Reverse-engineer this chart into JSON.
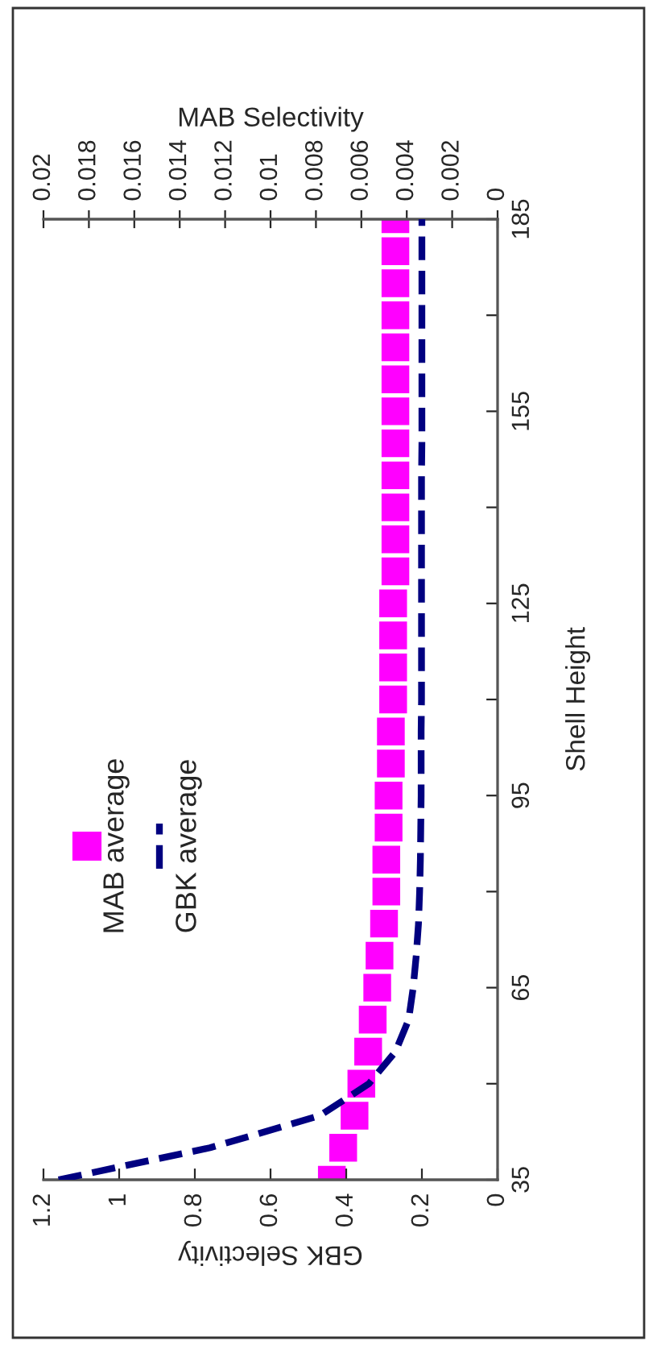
{
  "chart_data": {
    "type": "line",
    "orientation": "horizontal",
    "xlabel": "GBK Selectivity",
    "ylabel": "Shell Height",
    "x2label": "MAB Selectivity",
    "x": [
      35,
      40,
      45,
      50,
      55,
      60,
      65,
      70,
      75,
      80,
      85,
      90,
      95,
      100,
      105,
      110,
      115,
      120,
      125,
      130,
      135,
      140,
      145,
      150,
      155,
      160,
      165,
      170,
      175,
      180,
      185
    ],
    "series": [
      {
        "name": "MAB average",
        "type": "scatter",
        "axis": "x2",
        "color": "#ff00ff",
        "marker": "square",
        "values": [
          0.0073,
          0.0068,
          0.0063,
          0.006,
          0.0057,
          0.0055,
          0.0053,
          0.0052,
          0.005,
          0.0049,
          0.0049,
          0.0048,
          0.0048,
          0.0047,
          0.0047,
          0.0046,
          0.0046,
          0.0046,
          0.0046,
          0.0045,
          0.0045,
          0.0045,
          0.0045,
          0.0045,
          0.0045,
          0.0045,
          0.0045,
          0.0045,
          0.0045,
          0.0045,
          0.0045
        ]
      },
      {
        "name": "GBK average",
        "type": "line",
        "color": "#000080",
        "line_style": "dashed",
        "values": [
          1.16,
          0.76,
          0.47,
          0.34,
          0.27,
          0.235,
          0.223,
          0.215,
          0.209,
          0.206,
          0.204,
          0.203,
          0.202,
          0.202,
          0.202,
          0.201,
          0.201,
          0.201,
          0.201,
          0.201,
          0.201,
          0.201,
          0.201,
          0.2,
          0.2,
          0.2,
          0.2,
          0.2,
          0.2,
          0.2,
          0.2
        ]
      }
    ],
    "ylim": [
      35,
      185
    ],
    "yticks": [
      35,
      {
        "value": 50,
        "label": null
      },
      65,
      {
        "value": 80,
        "label": null
      },
      95,
      {
        "value": 110,
        "label": null
      },
      125,
      {
        "value": 140,
        "label": null
      },
      155,
      {
        "value": 170,
        "label": null
      },
      185
    ],
    "xlim": [
      1.2,
      0
    ],
    "xticks": [
      0,
      0.2,
      0.4,
      0.6,
      0.8,
      1,
      1.2
    ],
    "x2lim": [
      0.02,
      0
    ],
    "x2ticks": [
      0,
      0.002,
      0.004,
      0.006,
      0.008,
      0.01,
      0.012,
      0.014,
      0.016,
      0.018,
      0.02
    ],
    "legend": "left",
    "grid": false
  }
}
